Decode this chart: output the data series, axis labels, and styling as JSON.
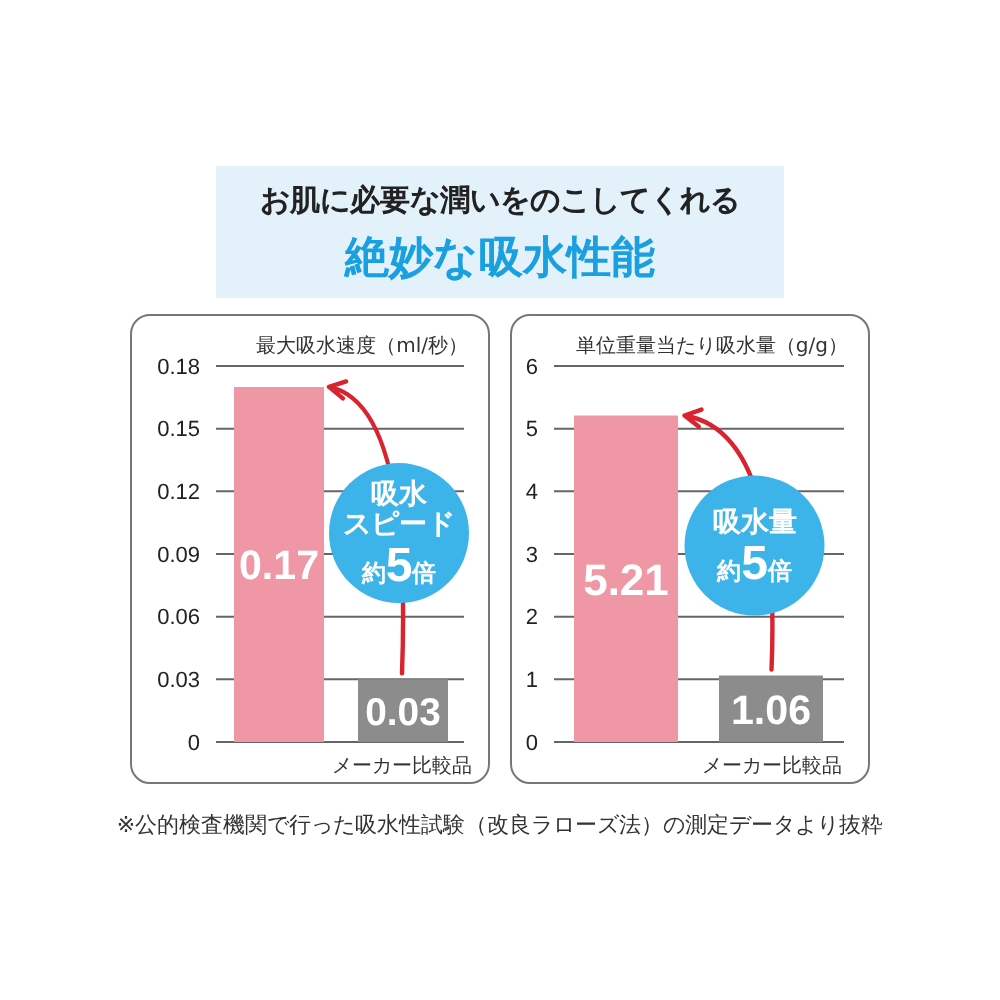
{
  "chart_data": [
    {
      "type": "bar",
      "title": "お肌に必要な潤いをのこしてくれる",
      "subtitle": "絶妙な吸水性能",
      "ylabel": "最大吸水速度（ml/秒）",
      "categories": [
        null,
        "メーカー比較品"
      ],
      "values": [
        0.17,
        0.03
      ],
      "colors": [
        "#ef97a5",
        "#8c8c8c"
      ],
      "ylim": [
        0,
        0.18
      ],
      "yticks": [
        0,
        0.03,
        0.06,
        0.09,
        0.12,
        0.15,
        0.18
      ],
      "grid": "y",
      "data_labels": true,
      "annotations": [
        "吸水スピード約5倍"
      ]
    },
    {
      "type": "bar",
      "ylabel": "単位重量当たり吸水量（g/g）",
      "categories": [
        null,
        "メーカー比較品"
      ],
      "values": [
        5.21,
        1.06
      ],
      "colors": [
        "#ef97a5",
        "#8c8c8c"
      ],
      "ylim": [
        0,
        6
      ],
      "yticks": [
        0,
        1,
        2,
        3,
        4,
        5,
        6
      ],
      "grid": "y",
      "data_labels": true,
      "annotations": [
        "吸水量約5倍",
        "※公的検査機関で行った吸水性試験（改良ラローズ法）の測定データより抜粋"
      ]
    }
  ]
}
